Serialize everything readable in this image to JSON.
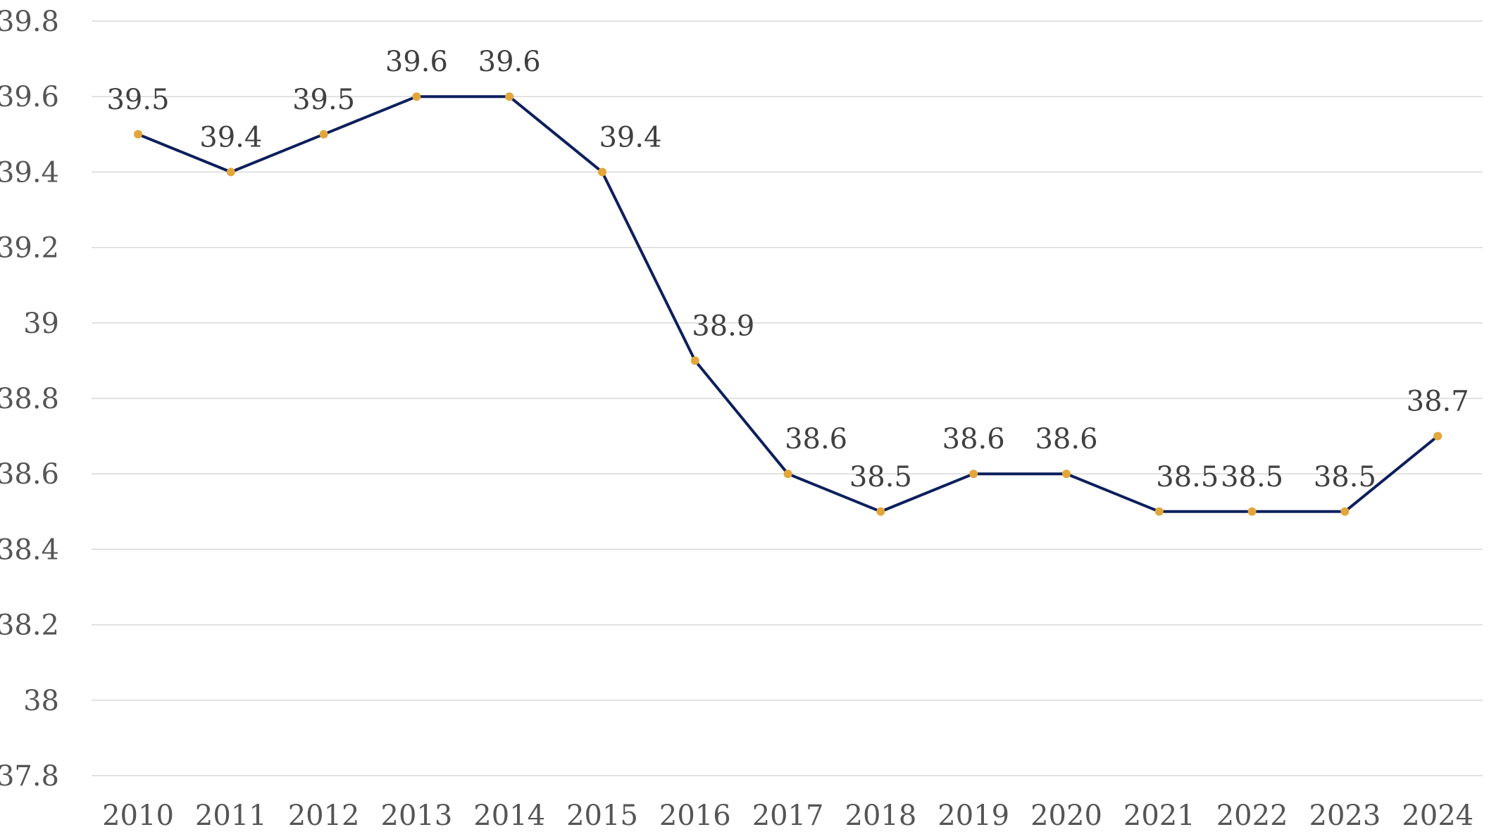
{
  "chart_data": {
    "type": "line",
    "title": "",
    "xlabel": "",
    "ylabel": "",
    "categories": [
      "2010",
      "2011",
      "2012",
      "2013",
      "2014",
      "2015",
      "2016",
      "2017",
      "2018",
      "2019",
      "2020",
      "2021",
      "2022",
      "2023",
      "2024"
    ],
    "series": [
      {
        "values": [
          39.5,
          39.4,
          39.5,
          39.6,
          39.6,
          39.4,
          38.9,
          38.6,
          38.5,
          38.6,
          38.6,
          38.5,
          38.5,
          38.5,
          38.7
        ]
      }
    ],
    "ylim": [
      37.8,
      39.8
    ],
    "yticks": [
      "39.8",
      "39.6",
      "39.4",
      "39.2",
      "39",
      "38.8",
      "38.6",
      "38.4",
      "38.2",
      "38",
      "37.8"
    ],
    "grid": true,
    "legend": "none",
    "data_labels": true,
    "colors": {
      "line": "#0d1f5c",
      "marker": "#e3a63b",
      "grid": "#d9d9d9",
      "text": "#555555"
    }
  }
}
